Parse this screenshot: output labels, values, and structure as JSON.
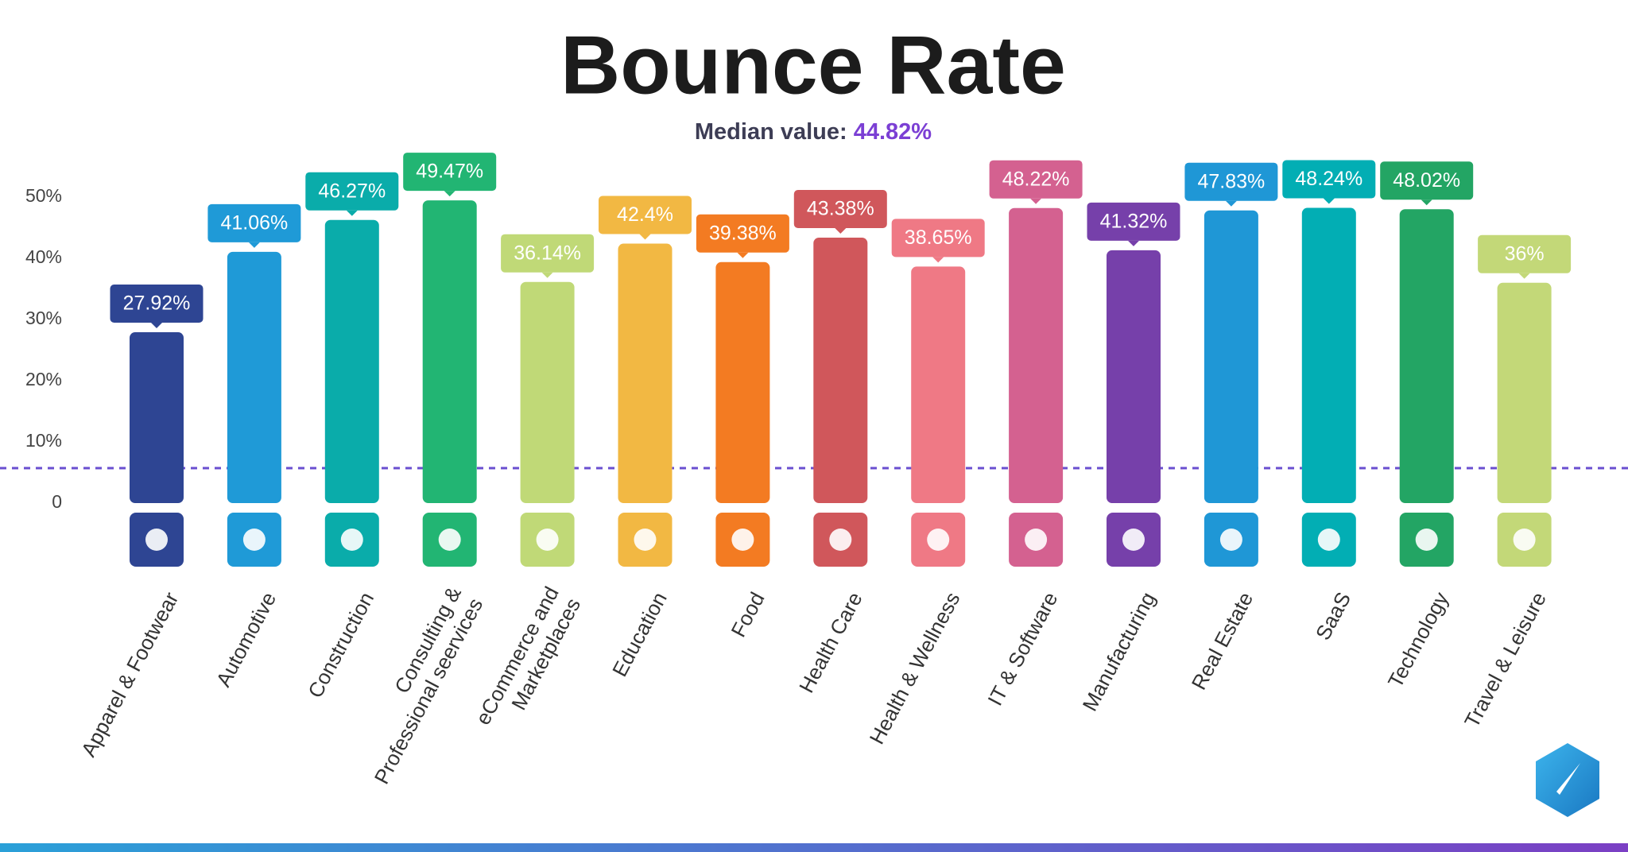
{
  "chart_data": {
    "type": "bar",
    "title": "Bounce Rate",
    "subtitle": "Median value:",
    "subtitle_value": "44.82%",
    "categories": [
      "Apparel & Footwear",
      "Automotive",
      "Construction",
      "Consulting &\nProfessional seervices",
      "eCommerce and\nMarketplaces",
      "Education",
      "Food",
      "Health Care",
      "Health & Wellness",
      "IT & Software",
      "Manufacturing",
      "Real Estate",
      "SaaS",
      "Technology",
      "Travel & Leisure"
    ],
    "values": [
      27.92,
      41.06,
      46.27,
      49.47,
      36.14,
      42.4,
      39.38,
      43.38,
      38.65,
      48.22,
      41.32,
      47.83,
      48.24,
      48.02,
      36
    ],
    "value_labels": [
      "27.92%",
      "41.06%",
      "46.27%",
      "49.47%",
      "36.14%",
      "42.4%",
      "39.38%",
      "43.38%",
      "38.65%",
      "48.22%",
      "41.32%",
      "47.83%",
      "48.24%",
      "48.02%",
      "36%"
    ],
    "colors": [
      "#2e4593",
      "#1f9ad7",
      "#0aacaa",
      "#22b573",
      "#c0d977",
      "#f2b843",
      "#f37b22",
      "#d0575b",
      "#ef7985",
      "#d46190",
      "#7640aa",
      "#1f97d6",
      "#02aeb4",
      "#23a564",
      "#c3d878"
    ],
    "ylim": [
      0,
      50
    ],
    "yticks": [
      0,
      {
        "value": 10,
        "label": "10%"
      },
      {
        "value": 20,
        "label": "20%"
      },
      {
        "value": 30,
        "label": "30%"
      },
      {
        "value": 40,
        "label": "40%"
      },
      {
        "value": 50,
        "label": "50%"
      }
    ],
    "grid": false
  }
}
